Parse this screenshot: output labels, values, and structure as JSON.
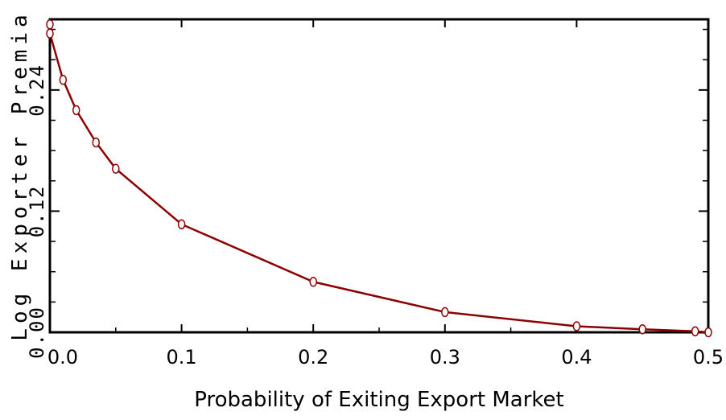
{
  "chart_data": {
    "type": "line",
    "title": "",
    "xlabel": "Probability of Exiting Export Market",
    "ylabel": "Log Exporter Premia",
    "xlim": [
      0.0,
      0.5
    ],
    "ylim": [
      0.0,
      0.31
    ],
    "xticks": [
      0.0,
      0.1,
      0.2,
      0.3,
      0.4,
      0.5
    ],
    "xtick_labels": [
      "0.0",
      "0.1",
      "0.2",
      "0.3",
      "0.4",
      "0.5"
    ],
    "yticks": [
      0.0,
      0.12,
      0.24
    ],
    "ytick_labels": [
      "0.00",
      "0.12",
      "0.24"
    ],
    "grid": false,
    "line_color": "#8b0000",
    "marker": "circle-open",
    "series": [
      {
        "x": [
          0.0,
          0.0,
          0.01,
          0.02,
          0.035,
          0.05,
          0.1,
          0.2,
          0.3,
          0.4,
          0.45,
          0.49,
          0.5
        ],
        "y": [
          0.305,
          0.296,
          0.25,
          0.22,
          0.188,
          0.162,
          0.107,
          0.05,
          0.02,
          0.006,
          0.003,
          0.001,
          0.0
        ]
      }
    ]
  }
}
